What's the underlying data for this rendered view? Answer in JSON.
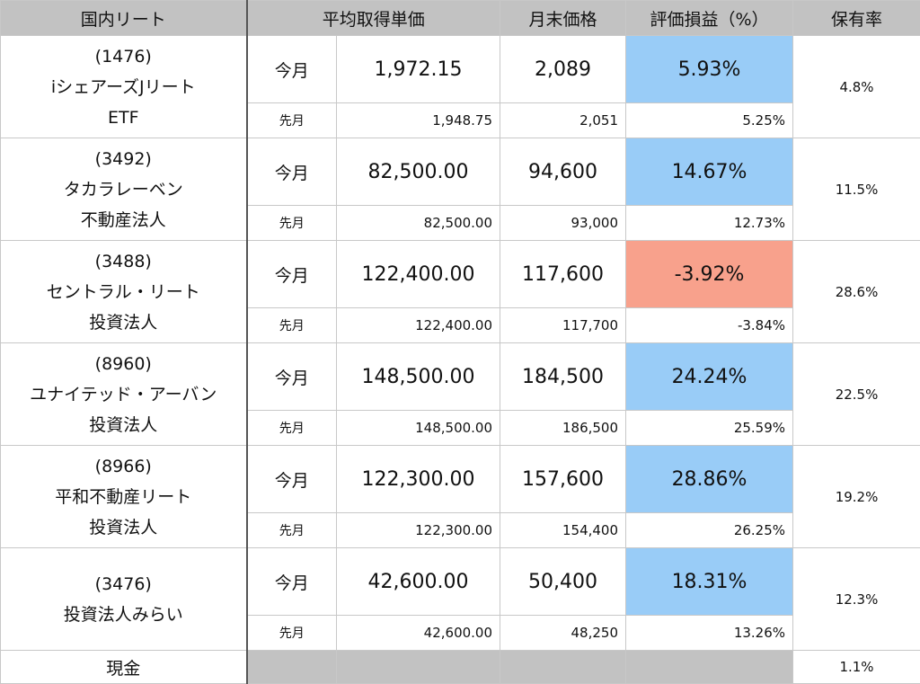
{
  "header": {
    "col_name": "国内リート",
    "col_avg": "平均取得単価",
    "col_price": "月末価格",
    "col_pl": "評価損益（%）",
    "col_rate": "保有率"
  },
  "labels": {
    "this_month": "今月",
    "last_month": "先月"
  },
  "colors": {
    "header_gray": "#c2c2c2",
    "gain_blue": "#99ccf7",
    "loss_salmon": "#f8a18c"
  },
  "rows": [
    {
      "line1": "(1476)",
      "line2": "iシェアーズJリート",
      "line3": "ETF",
      "cur_avg": "1,972.15",
      "cur_price": "2,089",
      "cur_pl": "5.93%",
      "cur_pl_sign": "positive",
      "prev_avg": "1,948.75",
      "prev_price": "2,051",
      "prev_pl": "5.25%",
      "rate": "4.8%"
    },
    {
      "line1": "(3492)",
      "line2": "タカラレーベン",
      "line3": "不動産法人",
      "cur_avg": "82,500.00",
      "cur_price": "94,600",
      "cur_pl": "14.67%",
      "cur_pl_sign": "positive",
      "prev_avg": "82,500.00",
      "prev_price": "93,000",
      "prev_pl": "12.73%",
      "rate": "11.5%"
    },
    {
      "line1": "(3488)",
      "line2": "セントラル・リート",
      "line3": "投資法人",
      "cur_avg": "122,400.00",
      "cur_price": "117,600",
      "cur_pl": "-3.92%",
      "cur_pl_sign": "negative",
      "prev_avg": "122,400.00",
      "prev_price": "117,700",
      "prev_pl": "-3.84%",
      "rate": "28.6%"
    },
    {
      "line1": "(8960)",
      "line2": "ユナイテッド・アーバン",
      "line3": "投資法人",
      "cur_avg": "148,500.00",
      "cur_price": "184,500",
      "cur_pl": "24.24%",
      "cur_pl_sign": "positive",
      "prev_avg": "148,500.00",
      "prev_price": "186,500",
      "prev_pl": "25.59%",
      "rate": "22.5%"
    },
    {
      "line1": "(8966)",
      "line2": "平和不動産リート",
      "line3": "投資法人",
      "cur_avg": "122,300.00",
      "cur_price": "157,600",
      "cur_pl": "28.86%",
      "cur_pl_sign": "positive",
      "prev_avg": "122,300.00",
      "prev_price": "154,400",
      "prev_pl": "26.25%",
      "rate": "19.2%"
    },
    {
      "line1": "(3476)",
      "line2": "投資法人みらい",
      "line3": "",
      "cur_avg": "42,600.00",
      "cur_price": "50,400",
      "cur_pl": "18.31%",
      "cur_pl_sign": "positive",
      "prev_avg": "42,600.00",
      "prev_price": "48,250",
      "prev_pl": "13.26%",
      "rate": "12.3%"
    }
  ],
  "cash": {
    "label": "現金",
    "rate": "1.1%"
  }
}
